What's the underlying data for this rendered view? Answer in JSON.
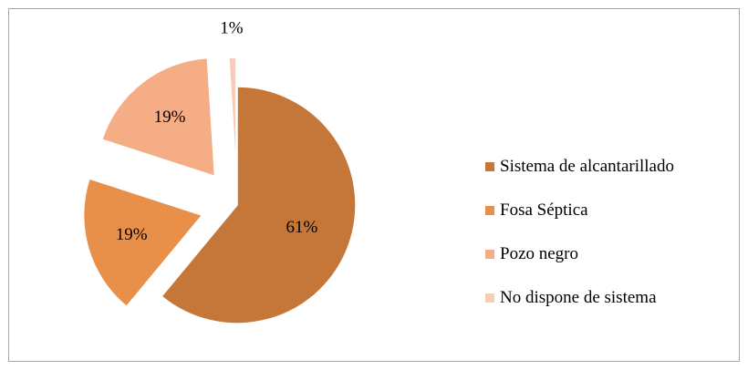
{
  "chart_data": {
    "type": "pie",
    "categories": [
      "Sistema de alcantarillado",
      "Fosa Séptica",
      "Pozo negro",
      "No dispone de sistema"
    ],
    "values": [
      61,
      19,
      19,
      1
    ],
    "data_labels": [
      "61%",
      "19%",
      "19%",
      "1%"
    ],
    "colors": [
      "#c5773a",
      "#e8904a",
      "#f4ad85",
      "#f8cdb8"
    ],
    "exploded": true,
    "legend_position": "right"
  }
}
